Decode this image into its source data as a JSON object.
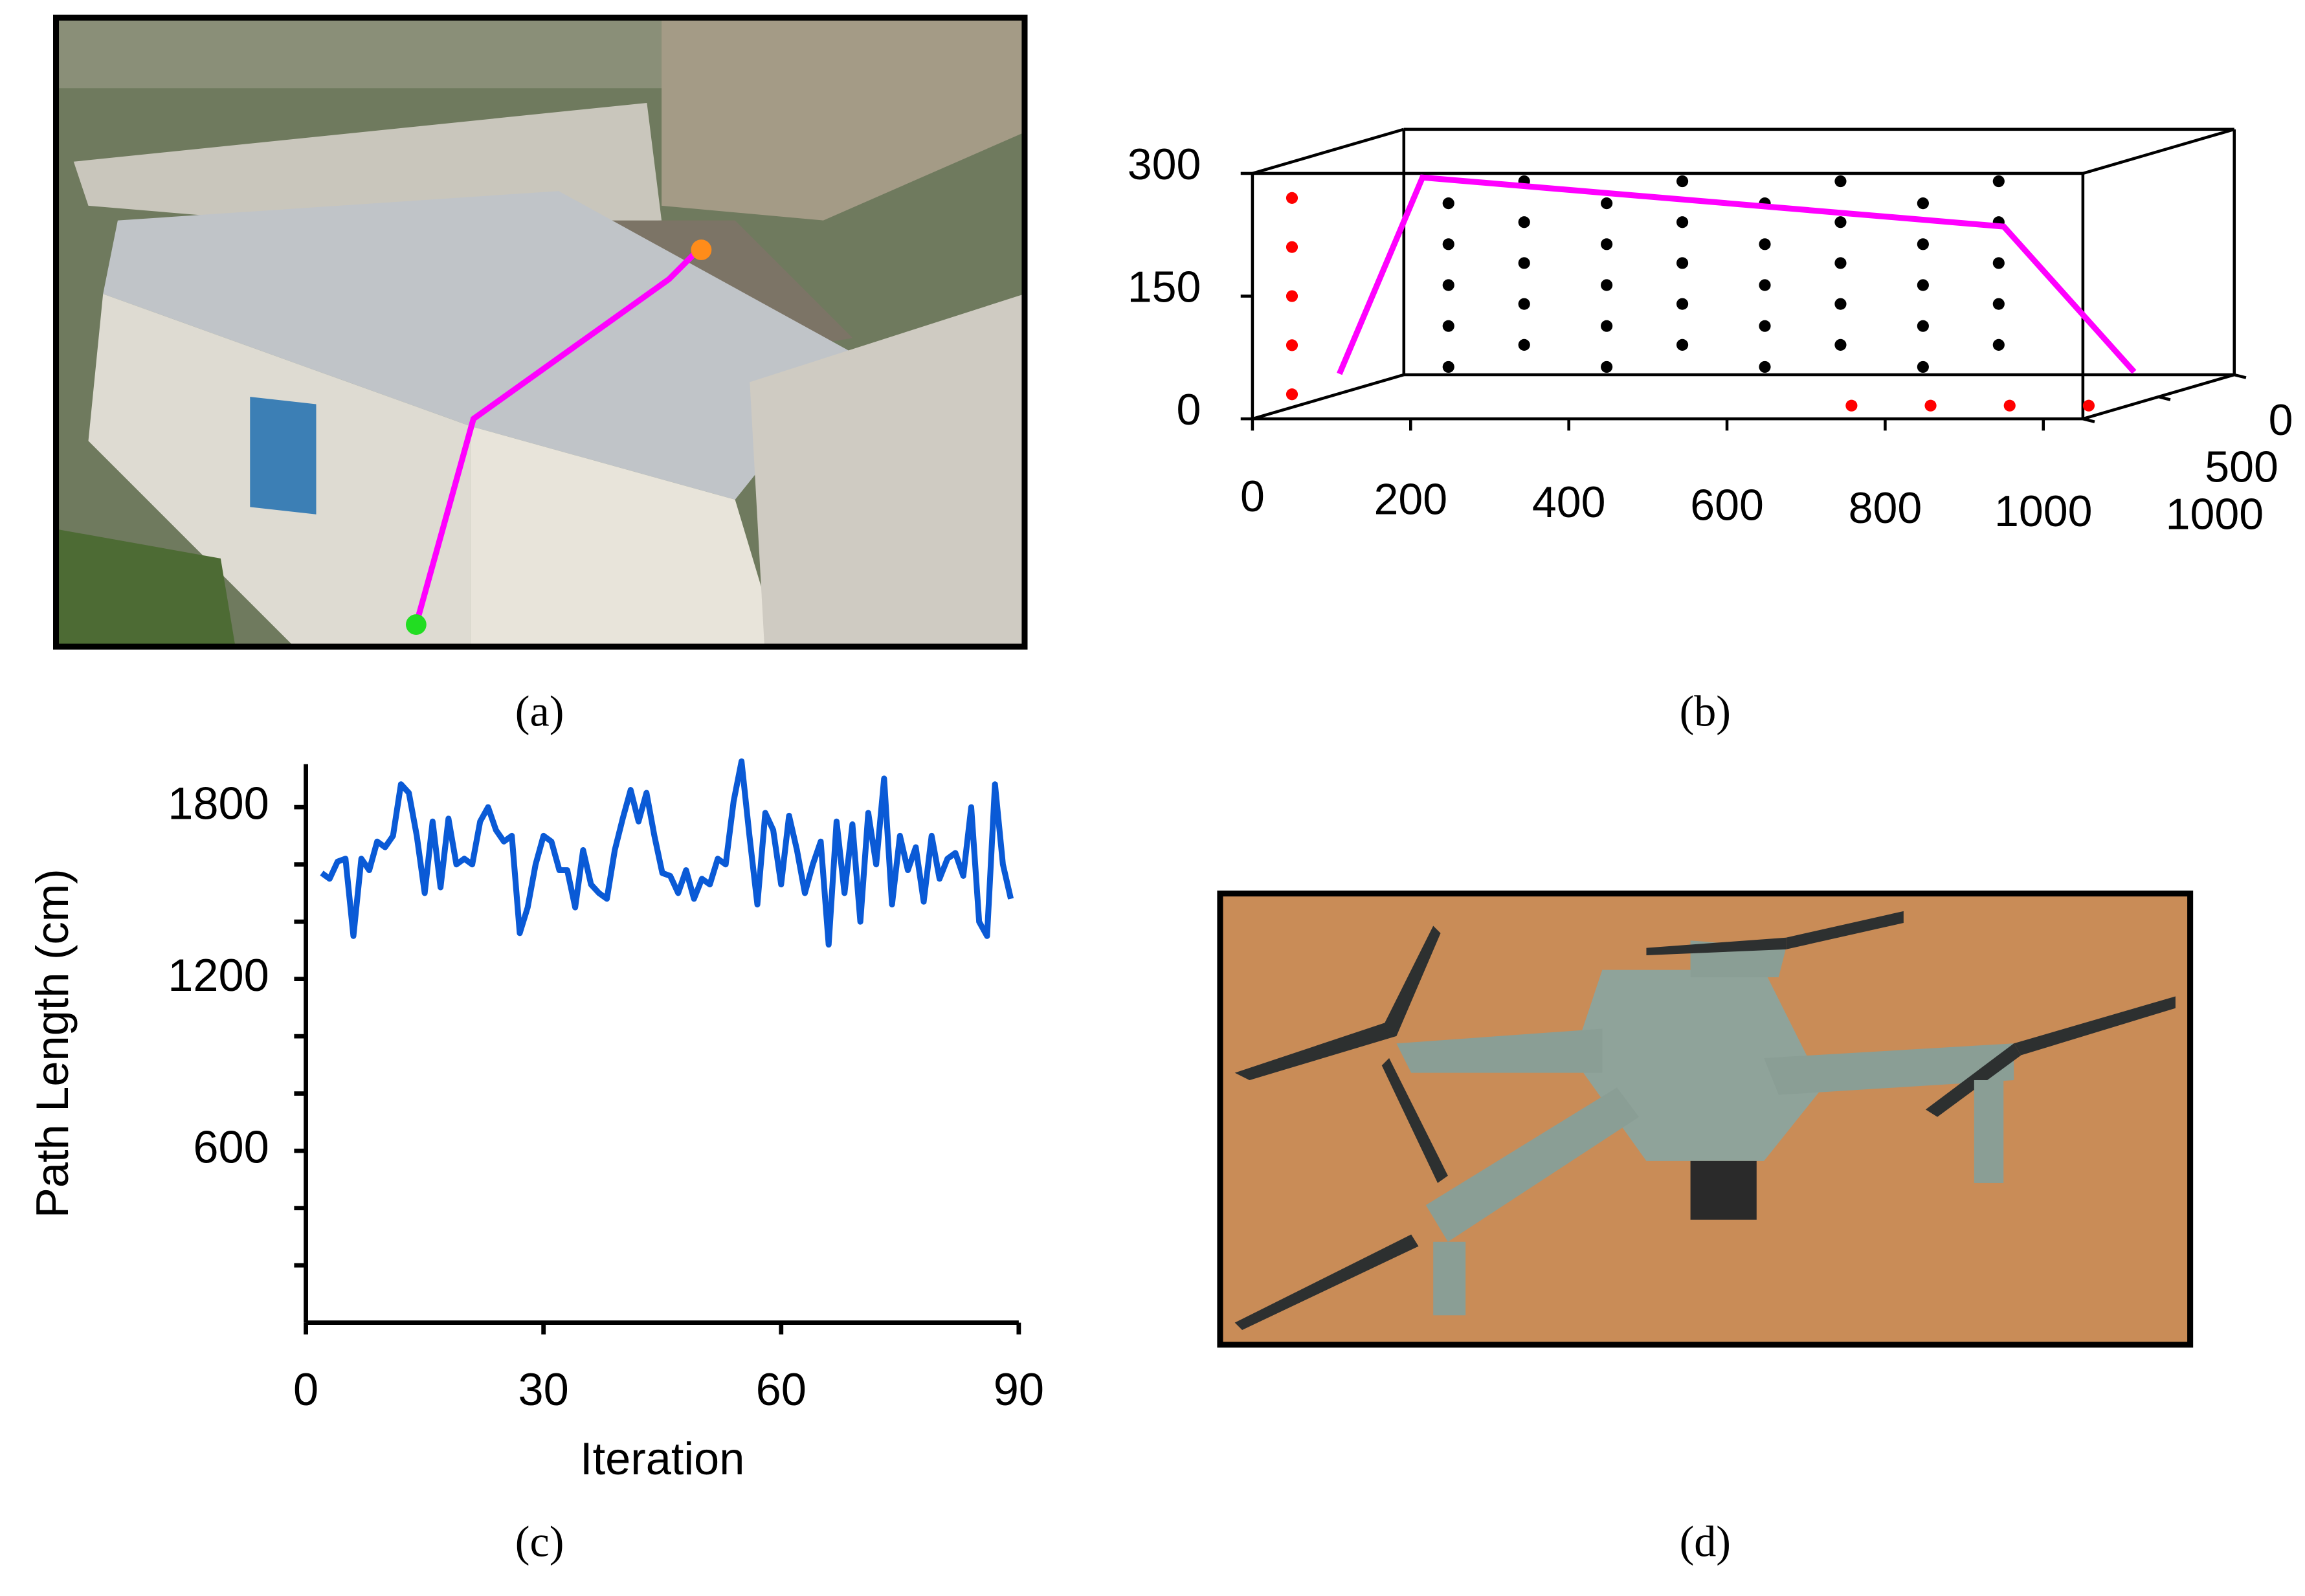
{
  "captions": [
    "(a)",
    "(b)",
    "(c)",
    "(d)"
  ],
  "chart_data": [
    {
      "type": "scatter3d",
      "xlim": [
        0,
        1050
      ],
      "ylim": [
        0,
        1000
      ],
      "zlim": [
        0,
        300
      ],
      "xticks": [
        0,
        200,
        400,
        600,
        800,
        1000
      ],
      "yticks": [
        0,
        500,
        1000
      ],
      "zticks": [
        0,
        150,
        300
      ],
      "series": [
        {
          "color": "#000000",
          "mode": "markers",
          "x": [
            200,
            400,
            600,
            800,
            200,
            400,
            600,
            800,
            200,
            400,
            600,
            800,
            200,
            400,
            600,
            800,
            200,
            400,
            600,
            800,
            200,
            400,
            600,
            800,
            200,
            400,
            600,
            800,
            200,
            400,
            600,
            800,
            200,
            400,
            600,
            800,
            200,
            400,
            600,
            800
          ],
          "y": [
            250,
            250,
            250,
            250,
            250,
            250,
            250,
            250,
            250,
            250,
            250,
            250,
            250,
            250,
            250,
            250,
            250,
            250,
            250,
            250,
            750,
            750,
            750,
            750,
            750,
            750,
            750,
            750,
            750,
            750,
            750,
            750,
            750,
            750,
            750,
            750,
            750,
            750,
            750,
            750
          ],
          "z": [
            50,
            50,
            50,
            50,
            100,
            100,
            100,
            100,
            150,
            150,
            150,
            150,
            200,
            200,
            200,
            200,
            250,
            250,
            250,
            250,
            50,
            50,
            50,
            50,
            100,
            100,
            100,
            100,
            150,
            150,
            150,
            150,
            200,
            200,
            200,
            200,
            250,
            250,
            250,
            250
          ]
        },
        {
          "color": "#ff0000",
          "mode": "markers",
          "x": [
            50,
            50,
            50,
            50,
            50,
            700,
            800,
            900,
            1000
          ],
          "y": [
            0,
            0,
            0,
            0,
            0,
            300,
            300,
            300,
            300
          ],
          "z": [
            270,
            210,
            150,
            90,
            30,
            0,
            0,
            0,
            0
          ]
        },
        {
          "color": "#ff00ff",
          "mode": "line",
          "x": [
            110,
            215,
            950,
            1000
          ],
          "y": [
            0,
            0,
            0,
            600
          ],
          "z": [
            55,
            295,
            235,
            25
          ]
        }
      ]
    },
    {
      "type": "line",
      "xlabel": "Iteration",
      "ylabel": "Path Length (cm)",
      "xlim": [
        0,
        90
      ],
      "ylim": [
        0,
        1950
      ],
      "xticks": [
        0,
        30,
        60,
        90
      ],
      "yticks": [
        600,
        1200,
        1800
      ],
      "yminor_ticks": [
        200,
        400,
        800,
        1000,
        1400,
        1600
      ],
      "x": [
        2,
        3,
        4,
        5,
        6,
        7,
        8,
        9,
        10,
        11,
        12,
        13,
        14,
        15,
        16,
        17,
        18,
        19,
        20,
        21,
        22,
        23,
        24,
        25,
        26,
        27,
        28,
        29,
        30,
        31,
        32,
        33,
        34,
        35,
        36,
        37,
        38,
        39,
        40,
        41,
        42,
        43,
        44,
        45,
        46,
        47,
        48,
        49,
        50,
        51,
        52,
        53,
        54,
        55,
        56,
        57,
        58,
        59,
        60,
        61,
        62,
        63,
        64,
        65,
        66,
        67,
        68,
        69,
        70,
        71,
        72,
        73,
        74,
        75,
        76,
        77,
        78,
        79,
        80,
        81,
        82,
        83,
        84,
        85,
        86,
        87,
        88,
        89
      ],
      "series": [
        {
          "color": "#0a5ad6",
          "values": [
            1570,
            1550,
            1610,
            1620,
            1350,
            1620,
            1580,
            1680,
            1660,
            1700,
            1880,
            1850,
            1700,
            1500,
            1750,
            1520,
            1760,
            1600,
            1620,
            1600,
            1750,
            1800,
            1720,
            1680,
            1700,
            1360,
            1450,
            1600,
            1700,
            1680,
            1580,
            1580,
            1450,
            1650,
            1530,
            1500,
            1480,
            1650,
            1760,
            1860,
            1750,
            1850,
            1700,
            1570,
            1560,
            1500,
            1580,
            1480,
            1550,
            1530,
            1620,
            1600,
            1820,
            1960,
            1700,
            1460,
            1780,
            1720,
            1530,
            1770,
            1650,
            1500,
            1600,
            1680,
            1320,
            1750,
            1500,
            1740,
            1400,
            1780,
            1600,
            1900,
            1460,
            1700,
            1580,
            1660,
            1470,
            1700,
            1550,
            1620,
            1640,
            1560,
            1800,
            1400,
            1350,
            1880,
            1600,
            1480
          ]
        }
      ]
    }
  ]
}
